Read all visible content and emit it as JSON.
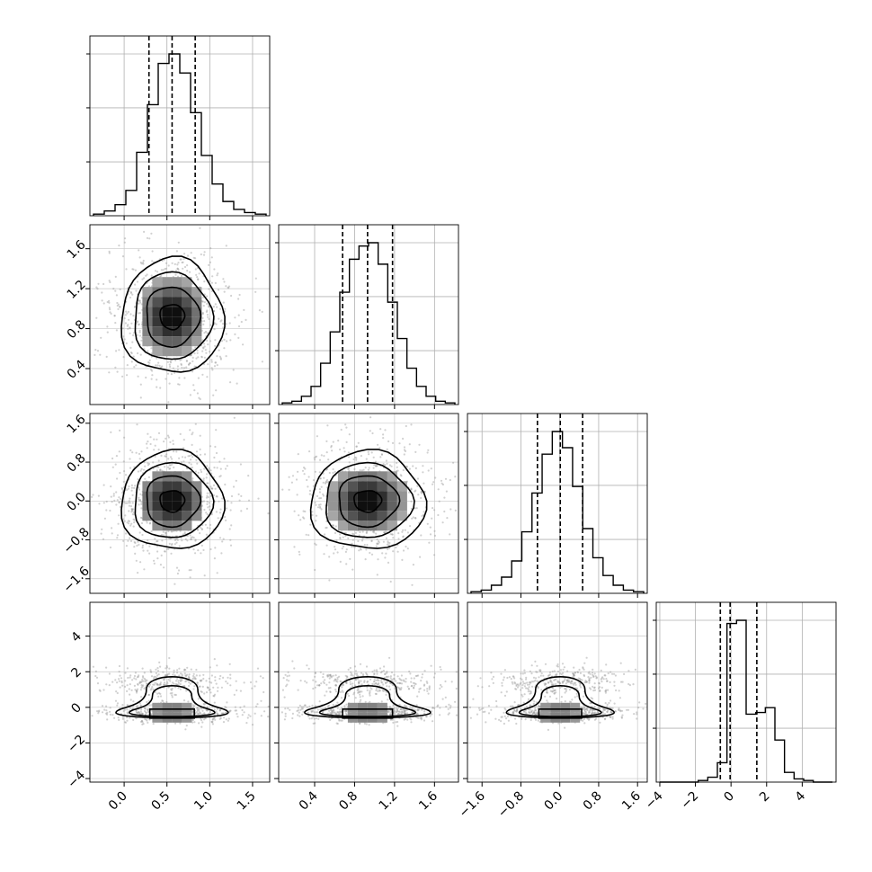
{
  "chart_data": {
    "type": "corner",
    "grid": true,
    "variables": [
      {
        "key": "p0",
        "range": [
          -0.4,
          1.7
        ],
        "ticks": [
          0.0,
          0.5,
          1.0,
          1.5
        ],
        "tick_labels": [
          "0.0",
          "0.5",
          "1.0",
          "1.5"
        ],
        "quantiles": [
          0.29,
          0.56,
          0.83
        ]
      },
      {
        "key": "p1",
        "range": [
          0.04,
          1.84
        ],
        "ticks": [
          0.4,
          0.8,
          1.2,
          1.6
        ],
        "tick_labels": [
          "0.4",
          "0.8",
          "1.2",
          "1.6"
        ],
        "quantiles": [
          0.68,
          0.93,
          1.18
        ]
      },
      {
        "key": "p2",
        "range": [
          -1.9,
          1.8
        ],
        "ticks": [
          -1.6,
          -0.8,
          0.0,
          0.8,
          1.6
        ],
        "tick_labels": [
          "−1.6",
          "−0.8",
          "0.0",
          "0.8",
          "1.6"
        ],
        "quantiles": [
          -0.46,
          0.01,
          0.47
        ]
      },
      {
        "key": "p3",
        "range": [
          -4.2,
          5.9
        ],
        "ticks": [
          -4,
          -2,
          0,
          2,
          4
        ],
        "tick_labels": [
          "−4",
          "−2",
          "0",
          "2",
          "4"
        ],
        "quantiles": [
          -0.6,
          -0.05,
          1.45
        ]
      }
    ],
    "marginals": [
      {
        "var": 0,
        "counts": [
          1,
          3,
          7,
          16,
          40,
          70,
          96,
          102,
          90,
          65,
          38,
          20,
          9,
          4,
          2,
          1
        ]
      },
      {
        "var": 1,
        "counts": [
          1,
          2,
          5,
          11,
          25,
          44,
          68,
          88,
          96,
          98,
          85,
          62,
          40,
          22,
          11,
          5,
          2,
          1
        ]
      },
      {
        "var": 2,
        "counts": [
          1,
          2,
          5,
          10,
          20,
          38,
          62,
          86,
          100,
          90,
          66,
          40,
          22,
          11,
          5,
          2,
          1
        ]
      },
      {
        "var": 3,
        "counts": [
          0,
          0,
          0,
          0,
          1,
          3,
          12,
          98,
          100,
          42,
          43,
          46,
          26,
          6,
          2,
          1,
          0,
          0
        ]
      }
    ],
    "panels": [
      {
        "row": 1,
        "col": 0,
        "center": [
          0.56,
          0.92
        ],
        "spread": [
          0.26,
          0.25
        ],
        "shape": "gaussian"
      },
      {
        "row": 2,
        "col": 0,
        "center": [
          0.56,
          0.0
        ],
        "spread": [
          0.26,
          0.44
        ],
        "shape": "gaussian"
      },
      {
        "row": 2,
        "col": 1,
        "center": [
          0.93,
          0.0
        ],
        "spread": [
          0.25,
          0.44
        ],
        "shape": "gaussian"
      },
      {
        "row": 3,
        "col": 0,
        "center": [
          0.56,
          -0.3
        ],
        "spread": [
          0.26,
          0.5
        ],
        "shape": "bimodal",
        "upper_mode": 1.4
      },
      {
        "row": 3,
        "col": 1,
        "center": [
          0.93,
          -0.3
        ],
        "spread": [
          0.25,
          0.5
        ],
        "shape": "bimodal",
        "upper_mode": 1.4
      },
      {
        "row": 3,
        "col": 2,
        "center": [
          0.01,
          -0.3
        ],
        "spread": [
          0.44,
          0.5
        ],
        "shape": "bimodal",
        "upper_mode": 1.4
      }
    ]
  }
}
